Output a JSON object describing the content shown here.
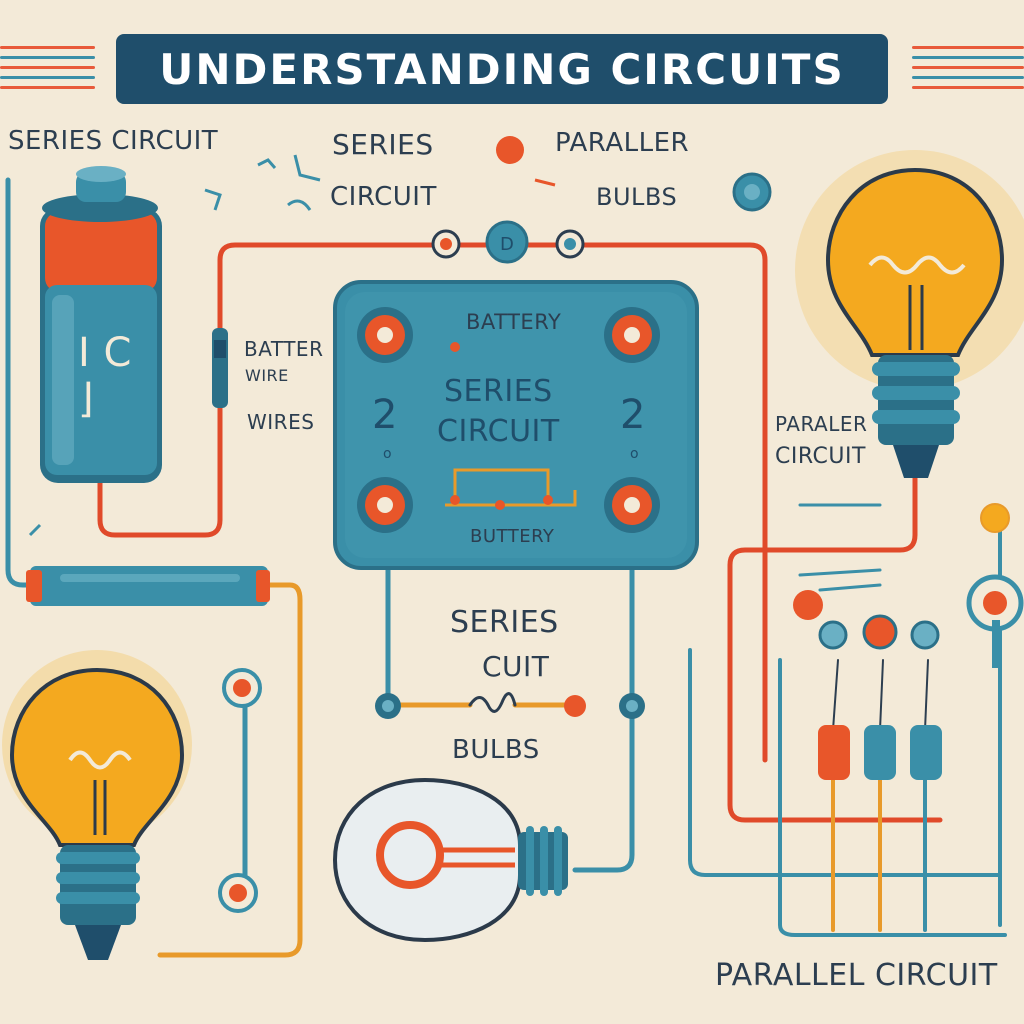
{
  "title": "UNDERSTANDING CIRCUITS",
  "labels": {
    "series_circuit_top_left": "SERIES CIRCUIT",
    "series_top": "SERIES",
    "circuit_top": "CIRCUIT",
    "paraller_top": "PARALLER",
    "bulbs_top": "BULBS",
    "batter": "BATTER",
    "wire_small": "WIRE",
    "wires": "WIRES",
    "battery_board": "BATTERY",
    "series_circuit_board": "SERIES\nCIRCUIT",
    "board_num_left": "2",
    "board_num_right": "2",
    "board_o_left": "o",
    "board_o_right": "o",
    "buttery_board": "BUTTERY",
    "battery_glyph": "I C\n⌋",
    "series_mid": "SERIES",
    "circuit_mid": "CUIT",
    "bulbs_mid": "BULBS",
    "paraler_right": "PARALER",
    "circuit_right": "CIRCUIT",
    "parallel_circuit_bottom": "PARALLEL CIRCUIT"
  },
  "colors": {
    "background": "#f3ead8",
    "title_bg": "#1f4e6b",
    "teal": "#3a8fa8",
    "orange": "#e8562a",
    "bulb_yellow": "#f4a91f",
    "wire_red": "#e04a2a",
    "wire_orange": "#e89a2a",
    "wire_blue": "#3a8fa8"
  }
}
